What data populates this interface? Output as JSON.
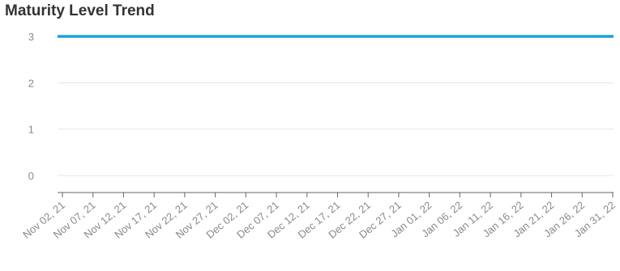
{
  "chart_data": {
    "type": "line",
    "title": "Maturity Level Trend",
    "xlabel": "",
    "ylabel": "",
    "x": [
      "Nov 02, 21",
      "Nov 07, 21",
      "Nov 12, 21",
      "Nov 17, 21",
      "Nov 22, 21",
      "Nov 27, 21",
      "Dec 02, 21",
      "Dec 07, 21",
      "Dec 12, 21",
      "Dec 17, 21",
      "Dec 22, 21",
      "Dec 27, 21",
      "Jan 01, 22",
      "Jan 06, 22",
      "Jan 11, 22",
      "Jan 16, 22",
      "Jan 21, 22",
      "Jan 26, 22",
      "Jan 31, 22"
    ],
    "series": [
      {
        "values": [
          3,
          3,
          3,
          3,
          3,
          3,
          3,
          3,
          3,
          3,
          3,
          3,
          3,
          3,
          3,
          3,
          3,
          3,
          3
        ]
      }
    ],
    "yticks": [
      "0",
      "1",
      "2",
      "3"
    ],
    "ylim": [
      0,
      3
    ],
    "grid": true,
    "legend": "none",
    "colors": {
      "line": "#1aa3d9",
      "grid": "#e6e6e6",
      "axis": "#666666",
      "tick_text": "#8a8a8a"
    }
  }
}
